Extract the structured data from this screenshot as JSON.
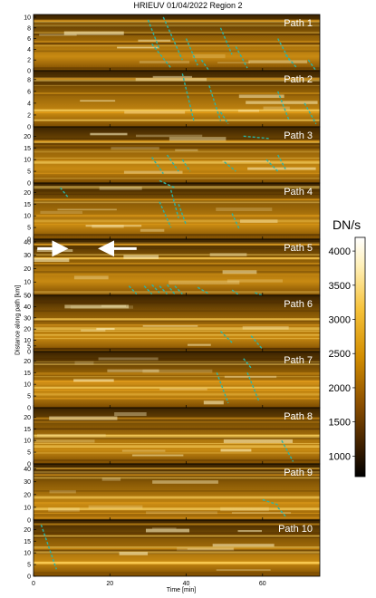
{
  "chart_data": {
    "type": "heatmap",
    "title": "HRIEUV 01/04/2022  Region 2",
    "xlabel": "Time [min]",
    "ylabel": "Distance along path [km]",
    "xlim": [
      0,
      75
    ],
    "x_ticks": [
      0,
      20,
      40,
      60
    ],
    "colorbar": {
      "label": "DN/s",
      "range": [
        700,
        4200
      ],
      "ticks": [
        1000,
        1500,
        2000,
        2500,
        3000,
        3500,
        4000
      ],
      "colormap": [
        "#000000",
        "#3a1d00",
        "#8a4e00",
        "#d28d00",
        "#f6c23a",
        "#fff0b8",
        "#ffffff"
      ]
    },
    "panels": [
      {
        "label": "Path 1",
        "ylim": [
          0,
          10.5
        ],
        "y_ticks": [
          0,
          2,
          4,
          6,
          8,
          10
        ],
        "tracks": [
          {
            "x": [
              30,
              33
            ],
            "y": [
              9.5,
              4
            ]
          },
          {
            "x": [
              34,
              39
            ],
            "y": [
              10,
              2
            ]
          },
          {
            "x": [
              31,
              36
            ],
            "y": [
              5,
              0.5
            ]
          },
          {
            "x": [
              40,
              43
            ],
            "y": [
              6,
              1
            ]
          },
          {
            "x": [
              49,
              52
            ],
            "y": [
              8,
              3
            ]
          },
          {
            "x": [
              53,
              56
            ],
            "y": [
              4.5,
              0.5
            ]
          },
          {
            "x": [
              64,
              67
            ],
            "y": [
              6,
              2
            ]
          },
          {
            "x": [
              66,
              69
            ],
            "y": [
              3,
              0.5
            ]
          },
          {
            "x": [
              72,
              74
            ],
            "y": [
              2,
              0
            ]
          },
          {
            "x": [
              44,
              46
            ],
            "y": [
              2,
              0
            ]
          }
        ]
      },
      {
        "label": "Path 2",
        "ylim": [
          0,
          9.5
        ],
        "y_ticks": [
          0,
          2,
          4,
          6,
          8
        ],
        "tracks": [
          {
            "x": [
              39,
              42
            ],
            "y": [
              9,
              1
            ]
          },
          {
            "x": [
              46,
              49
            ],
            "y": [
              7,
              1
            ]
          },
          {
            "x": [
              64,
              67
            ],
            "y": [
              6,
              1
            ]
          },
          {
            "x": [
              71,
              74
            ],
            "y": [
              4,
              0.5
            ]
          },
          {
            "x": [
              49,
              51
            ],
            "y": [
              2.5,
              0.5
            ]
          }
        ]
      },
      {
        "label": "Path 3",
        "ylim": [
          0,
          24
        ],
        "y_ticks": [
          0,
          5,
          10,
          15,
          20
        ],
        "tracks": [
          {
            "x": [
              31,
              34
            ],
            "y": [
              11,
              4
            ]
          },
          {
            "x": [
              35,
              38
            ],
            "y": [
              12,
              5
            ]
          },
          {
            "x": [
              39,
              41
            ],
            "y": [
              10,
              5
            ]
          },
          {
            "x": [
              50,
              53
            ],
            "y": [
              9,
              5
            ]
          },
          {
            "x": [
              61,
              64
            ],
            "y": [
              10,
              5
            ]
          },
          {
            "x": [
              64,
              66
            ],
            "y": [
              12,
              6
            ]
          },
          {
            "x": [
              55,
              62
            ],
            "y": [
              20,
              19
            ]
          }
        ]
      },
      {
        "label": "Path 4",
        "ylim": [
          0,
          24
        ],
        "y_ticks": [
          0,
          5,
          10,
          15,
          20
        ],
        "tracks": [
          {
            "x": [
              7,
              9
            ],
            "y": [
              22,
              18
            ]
          },
          {
            "x": [
              33,
              36
            ],
            "y": [
              16,
              5
            ]
          },
          {
            "x": [
              36,
              38
            ],
            "y": [
              21,
              9
            ]
          },
          {
            "x": [
              38,
              40
            ],
            "y": [
              15,
              6
            ]
          },
          {
            "x": [
              52,
              54
            ],
            "y": [
              11,
              4
            ]
          },
          {
            "x": [
              33,
              37
            ],
            "y": [
              25,
              22
            ]
          }
        ]
      },
      {
        "label": "Path 5",
        "ylim": [
          0,
          42
        ],
        "y_ticks": [
          0,
          10,
          20,
          30,
          40
        ],
        "tracks": [
          {
            "x": [
              25,
              27
            ],
            "y": [
              7,
              1
            ]
          },
          {
            "x": [
              29,
              31
            ],
            "y": [
              7,
              1
            ]
          },
          {
            "x": [
              31,
              33
            ],
            "y": [
              8,
              2
            ]
          },
          {
            "x": [
              33,
              35
            ],
            "y": [
              7,
              1
            ]
          },
          {
            "x": [
              35,
              37
            ],
            "y": [
              8,
              1
            ]
          },
          {
            "x": [
              37,
              39
            ],
            "y": [
              7,
              1
            ]
          },
          {
            "x": [
              43,
              46
            ],
            "y": [
              6,
              1
            ]
          },
          {
            "x": [
              52,
              54
            ],
            "y": [
              4,
              0
            ]
          },
          {
            "x": [
              58,
              60
            ],
            "y": [
              2,
              0
            ]
          }
        ]
      },
      {
        "label": "Path 6",
        "ylim": [
          0,
          50
        ],
        "y_ticks": [
          0,
          5,
          10,
          20,
          30,
          40,
          50
        ],
        "tracks": [
          {
            "x": [
              49,
              52
            ],
            "y": [
              18,
              8
            ]
          },
          {
            "x": [
              57,
              60
            ],
            "y": [
              14,
              2
            ]
          }
        ]
      },
      {
        "label": "Path 7",
        "ylim": [
          0,
          24
        ],
        "y_ticks": [
          0,
          5,
          10,
          15,
          20
        ],
        "tracks": [
          {
            "x": [
              48,
              51
            ],
            "y": [
              15,
              2
            ]
          },
          {
            "x": [
              56,
              59
            ],
            "y": [
              15,
              3
            ]
          },
          {
            "x": [
              55,
              57
            ],
            "y": [
              21,
              17
            ]
          }
        ]
      },
      {
        "label": "Path 8",
        "ylim": [
          0,
          24
        ],
        "y_ticks": [
          0,
          5,
          10,
          15,
          20
        ],
        "tracks": [
          {
            "x": [
              65,
              68
            ],
            "y": [
              10,
              1
            ]
          }
        ]
      },
      {
        "label": "Path 9",
        "ylim": [
          0,
          44
        ],
        "y_ticks": [
          0,
          10,
          20,
          30,
          40
        ],
        "tracks": [
          {
            "x": [
              60,
              64
            ],
            "y": [
              16,
              12
            ]
          },
          {
            "x": [
              64,
              66
            ],
            "y": [
              10,
              3
            ]
          }
        ]
      },
      {
        "label": "Path 10",
        "ylim": [
          0,
          24
        ],
        "y_ticks": [
          0,
          5,
          10,
          15,
          20
        ],
        "tracks": [
          {
            "x": [
              2,
              6
            ],
            "y": [
              22,
              3
            ]
          }
        ]
      }
    ],
    "arrows": [
      {
        "panel": 5,
        "direction": "right",
        "x": [
          1,
          7
        ],
        "y": 35
      },
      {
        "panel": 5,
        "direction": "left",
        "x": [
          19,
          27
        ],
        "y": 35
      }
    ],
    "grid": false,
    "track_color": "#2ab3a6"
  }
}
